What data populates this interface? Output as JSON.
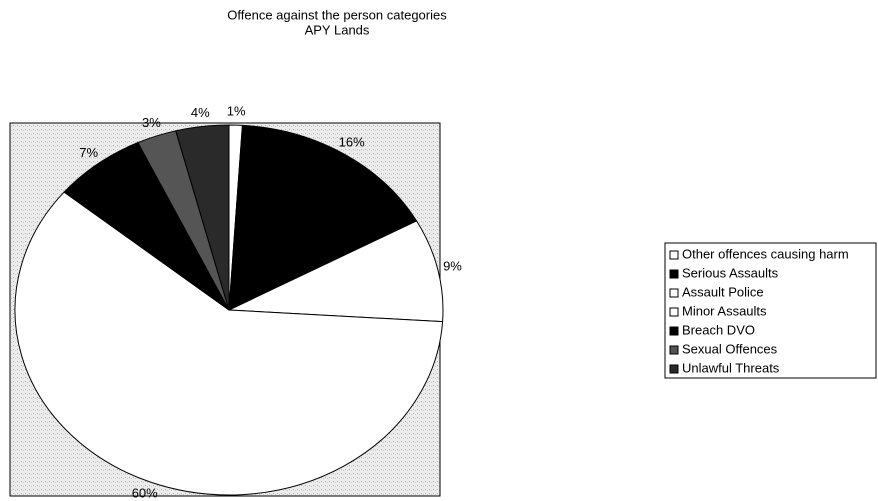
{
  "chart_data": {
    "type": "pie",
    "title": "Offence against the person categories",
    "subtitle": "APY Lands",
    "categories": [
      "Other offences causing harm",
      "Serious Assaults",
      "Assault Police",
      "Minor Assaults",
      "Breach DVO",
      "Sexual Offences",
      "Unlawful Threats"
    ],
    "values": [
      1,
      16,
      9,
      60,
      7,
      3,
      4
    ],
    "value_labels": [
      "1%",
      "16%",
      "9%",
      "60%",
      "7%",
      "3%",
      "4%"
    ],
    "colors": [
      "#ffffff",
      "#000000",
      "#ffffff",
      "#ffffff",
      "#000000",
      "#555555",
      "#2a2a2a"
    ],
    "legend": "right"
  }
}
